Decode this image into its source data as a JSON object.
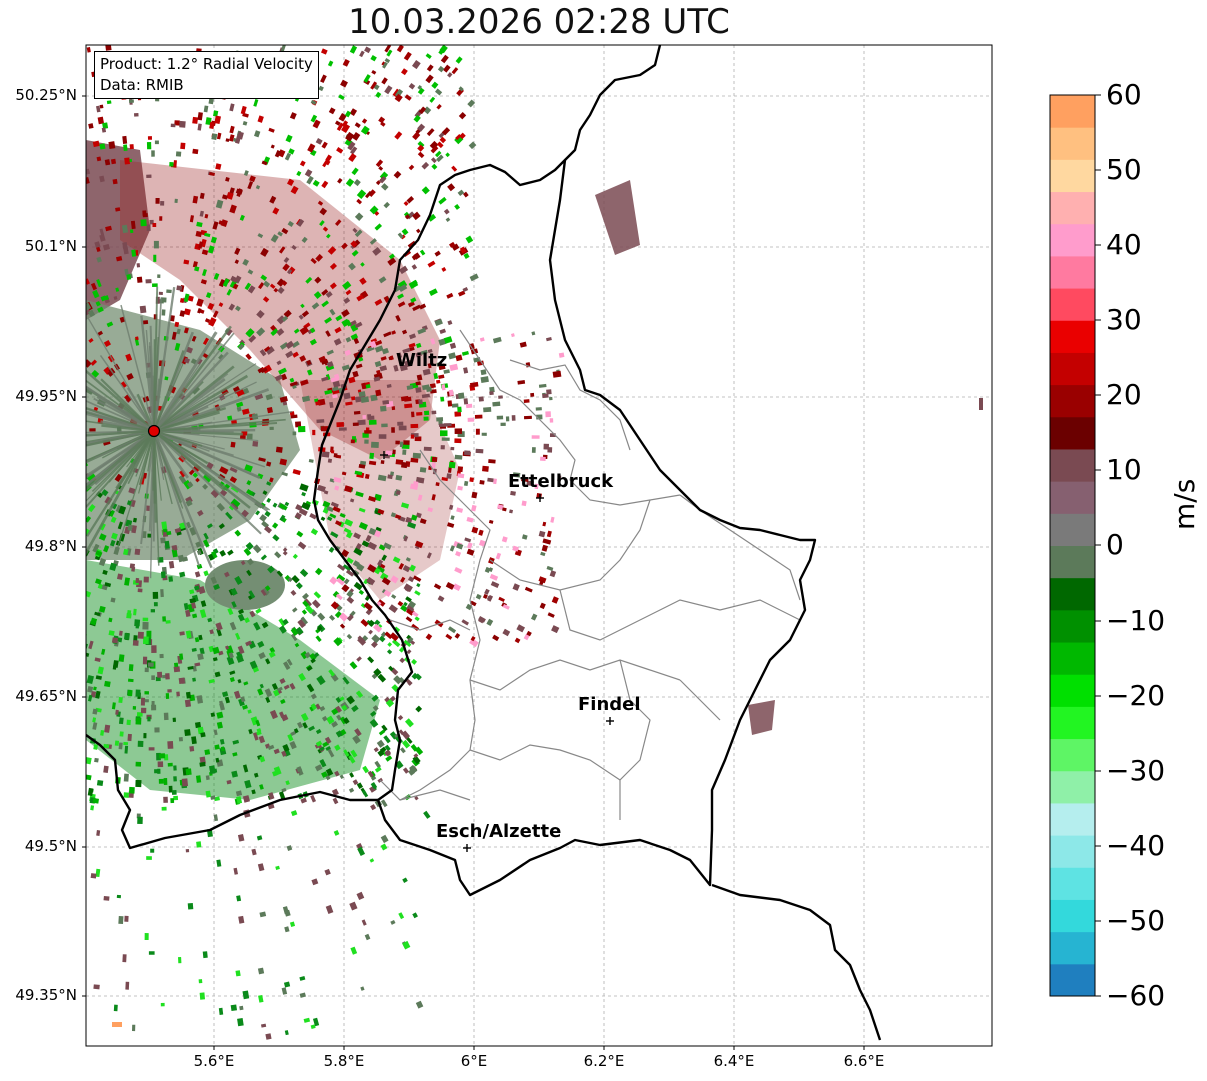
{
  "title": "10.03.2026 02:28 UTC",
  "info": {
    "product": "Product: 1.2° Radial Velocity",
    "data": "Data: RMIB"
  },
  "colorbar": {
    "unit": "m/s",
    "ticks": [
      "60",
      "50",
      "40",
      "30",
      "20",
      "10",
      "0",
      "−10",
      "−20",
      "−30",
      "−40",
      "−50",
      "−60"
    ],
    "range": [
      -60,
      60
    ],
    "colors": [
      "#1f7fbf",
      "#26b4d2",
      "#33d9dc",
      "#5ee3e3",
      "#8de8e8",
      "#b5eeee",
      "#8ff0a8",
      "#5ef565",
      "#22f522",
      "#00e000",
      "#00b800",
      "#009000",
      "#006800",
      "#5c7a5a",
      "#7a7a7a",
      "#866070",
      "#7a4a52",
      "#6b0000",
      "#9a0000",
      "#c40000",
      "#ea0000",
      "#ff4a60",
      "#ff7aa0",
      "#ff9ccc",
      "#ffb0b0",
      "#ffd8a0",
      "#ffc080",
      "#ffa060"
    ]
  },
  "axes": {
    "lat_labels": [
      "50.25°N",
      "50.1°N",
      "49.95°N",
      "49.8°N",
      "49.65°N",
      "49.5°N",
      "49.35°N"
    ],
    "lon_labels": [
      "5.6°E",
      "5.8°E",
      "6°E",
      "6.2°E",
      "6.4°E",
      "6.6°E"
    ]
  },
  "cities": [
    {
      "name": "Wiltz"
    },
    {
      "name": "Ettelbruck"
    },
    {
      "name": "Findel"
    },
    {
      "name": "Esch/Alzette"
    }
  ],
  "radar_site": {
    "name": "radar-site"
  }
}
